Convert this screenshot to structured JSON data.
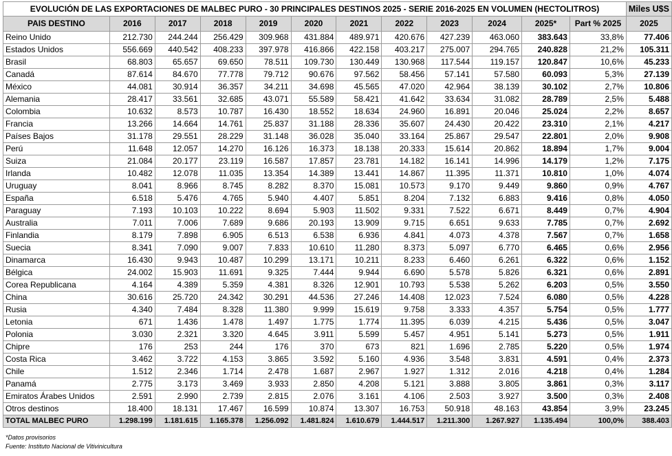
{
  "title": "EVOLUCIÓN DE LAS EXPORTACIONES DE MALBEC PURO - 30 PRINCIPALES DESTINOS 2025 - SERIE 2016-2025 EN VOLUMEN (HECTOLITROS)",
  "usd_header": "Miles U$S",
  "headers": [
    "PAIS DESTINO",
    "2016",
    "2017",
    "2018",
    "2019",
    "2020",
    "2021",
    "2022",
    "2023",
    "2024",
    "2025*",
    "Part % 2025",
    "2025"
  ],
  "rows": [
    [
      "Reino Unido",
      "212.730",
      "244.244",
      "256.429",
      "309.968",
      "431.884",
      "489.971",
      "420.676",
      "427.239",
      "463.060",
      "383.643",
      "33,8%",
      "77.406"
    ],
    [
      "Estados Unidos",
      "556.669",
      "440.542",
      "408.233",
      "397.978",
      "416.866",
      "422.158",
      "403.217",
      "275.007",
      "294.765",
      "240.828",
      "21,2%",
      "105.311"
    ],
    [
      "Brasil",
      "68.803",
      "65.657",
      "69.650",
      "78.511",
      "109.730",
      "130.449",
      "130.968",
      "117.544",
      "119.157",
      "120.847",
      "10,6%",
      "45.233"
    ],
    [
      "Canadá",
      "87.614",
      "84.670",
      "77.778",
      "79.712",
      "90.676",
      "97.562",
      "58.456",
      "57.141",
      "57.580",
      "60.093",
      "5,3%",
      "27.139"
    ],
    [
      "México",
      "44.081",
      "30.914",
      "36.357",
      "34.211",
      "34.698",
      "45.565",
      "47.020",
      "42.964",
      "38.139",
      "30.102",
      "2,7%",
      "10.806"
    ],
    [
      "Alemania",
      "28.417",
      "33.561",
      "32.685",
      "43.071",
      "55.589",
      "58.421",
      "41.642",
      "33.634",
      "31.082",
      "28.789",
      "2,5%",
      "5.488"
    ],
    [
      "Colombia",
      "10.632",
      "8.573",
      "10.787",
      "16.430",
      "18.552",
      "18.634",
      "24.960",
      "16.891",
      "20.046",
      "25.024",
      "2,2%",
      "8.657"
    ],
    [
      "Francia",
      "13.266",
      "14.664",
      "14.761",
      "25.837",
      "31.188",
      "28.336",
      "35.607",
      "24.430",
      "20.422",
      "23.310",
      "2,1%",
      "4.217"
    ],
    [
      "Países Bajos",
      "31.178",
      "29.551",
      "28.229",
      "31.148",
      "36.028",
      "35.040",
      "33.164",
      "25.867",
      "29.547",
      "22.801",
      "2,0%",
      "9.908"
    ],
    [
      "Perú",
      "11.648",
      "12.057",
      "14.270",
      "16.126",
      "16.373",
      "18.138",
      "20.333",
      "15.614",
      "20.862",
      "18.894",
      "1,7%",
      "9.004"
    ],
    [
      "Suiza",
      "21.084",
      "20.177",
      "23.119",
      "16.587",
      "17.857",
      "23.781",
      "14.182",
      "16.141",
      "14.996",
      "14.179",
      "1,2%",
      "7.175"
    ],
    [
      "Irlanda",
      "10.482",
      "12.078",
      "11.035",
      "13.354",
      "14.389",
      "13.441",
      "14.867",
      "11.395",
      "11.371",
      "10.810",
      "1,0%",
      "4.074"
    ],
    [
      "Uruguay",
      "8.041",
      "8.966",
      "8.745",
      "8.282",
      "8.370",
      "15.081",
      "10.573",
      "9.170",
      "9.449",
      "9.860",
      "0,9%",
      "4.767"
    ],
    [
      "España",
      "6.518",
      "5.476",
      "4.765",
      "5.940",
      "4.407",
      "5.851",
      "8.204",
      "7.132",
      "6.883",
      "9.416",
      "0,8%",
      "4.050"
    ],
    [
      "Paraguay",
      "7.193",
      "10.103",
      "10.222",
      "8.694",
      "5.903",
      "11.502",
      "9.331",
      "7.522",
      "6.671",
      "8.449",
      "0,7%",
      "4.904"
    ],
    [
      "Australia",
      "7.011",
      "7.006",
      "7.689",
      "9.686",
      "20.193",
      "13.909",
      "9.715",
      "6.651",
      "9.633",
      "7.785",
      "0,7%",
      "2.692"
    ],
    [
      "Finlandia",
      "8.179",
      "7.898",
      "6.905",
      "6.513",
      "6.538",
      "6.936",
      "4.841",
      "4.073",
      "4.378",
      "7.567",
      "0,7%",
      "1.658"
    ],
    [
      "Suecia",
      "8.341",
      "7.090",
      "9.007",
      "7.833",
      "10.610",
      "11.280",
      "8.373",
      "5.097",
      "6.770",
      "6.465",
      "0,6%",
      "2.956"
    ],
    [
      "Dinamarca",
      "16.430",
      "9.943",
      "10.487",
      "10.299",
      "13.171",
      "10.211",
      "8.233",
      "6.460",
      "6.261",
      "6.322",
      "0,6%",
      "1.152"
    ],
    [
      "Bélgica",
      "24.002",
      "15.903",
      "11.691",
      "9.325",
      "7.444",
      "9.944",
      "6.690",
      "5.578",
      "5.826",
      "6.321",
      "0,6%",
      "2.891"
    ],
    [
      "Corea Republicana",
      "4.164",
      "4.389",
      "5.359",
      "4.381",
      "8.326",
      "12.901",
      "10.793",
      "5.538",
      "5.262",
      "6.203",
      "0,5%",
      "3.550"
    ],
    [
      "China",
      "30.616",
      "25.720",
      "24.342",
      "30.291",
      "44.536",
      "27.246",
      "14.408",
      "12.023",
      "7.524",
      "6.080",
      "0,5%",
      "4.228"
    ],
    [
      "Rusia",
      "4.340",
      "7.484",
      "8.328",
      "11.380",
      "9.999",
      "15.619",
      "9.758",
      "3.333",
      "4.357",
      "5.754",
      "0,5%",
      "1.777"
    ],
    [
      "Letonia",
      "671",
      "1.436",
      "1.478",
      "1.497",
      "1.775",
      "1.774",
      "11.395",
      "6.039",
      "4.215",
      "5.436",
      "0,5%",
      "3.047"
    ],
    [
      "Polonia",
      "3.030",
      "2.321",
      "3.320",
      "4.645",
      "3.911",
      "5.599",
      "5.457",
      "4.951",
      "5.141",
      "5.273",
      "0,5%",
      "1.911"
    ],
    [
      "Chipre",
      "176",
      "253",
      "244",
      "176",
      "370",
      "673",
      "821",
      "1.696",
      "2.785",
      "5.220",
      "0,5%",
      "1.974"
    ],
    [
      "Costa Rica",
      "3.462",
      "3.722",
      "4.153",
      "3.865",
      "3.592",
      "5.160",
      "4.936",
      "3.548",
      "3.831",
      "4.591",
      "0,4%",
      "2.373"
    ],
    [
      "Chile",
      "1.512",
      "2.346",
      "1.714",
      "2.478",
      "1.687",
      "2.967",
      "1.927",
      "1.312",
      "2.016",
      "4.218",
      "0,4%",
      "1.284"
    ],
    [
      "Panamá",
      "2.775",
      "3.173",
      "3.469",
      "3.933",
      "2.850",
      "4.208",
      "5.121",
      "3.888",
      "3.805",
      "3.861",
      "0,3%",
      "3.117"
    ],
    [
      "Emiratos Árabes Unidos",
      "2.591",
      "2.990",
      "2.739",
      "2.815",
      "2.076",
      "3.161",
      "4.106",
      "2.503",
      "3.927",
      "3.500",
      "0,3%",
      "2.408"
    ],
    [
      "Otros destinos",
      "18.400",
      "18.131",
      "17.467",
      "16.599",
      "10.874",
      "13.307",
      "16.753",
      "50.918",
      "48.163",
      "43.854",
      "3,9%",
      "23.245"
    ]
  ],
  "total": [
    "TOTAL MALBEC PURO",
    "1.298.199",
    "1.181.615",
    "1.165.378",
    "1.256.092",
    "1.481.824",
    "1.610.679",
    "1.444.517",
    "1.211.300",
    "1.267.927",
    "1.135.494",
    "100,0%",
    "388.403"
  ],
  "notes": [
    "*Datos provisorios",
    "Fuente: Instituto Nacional de Vitivinicultura"
  ]
}
